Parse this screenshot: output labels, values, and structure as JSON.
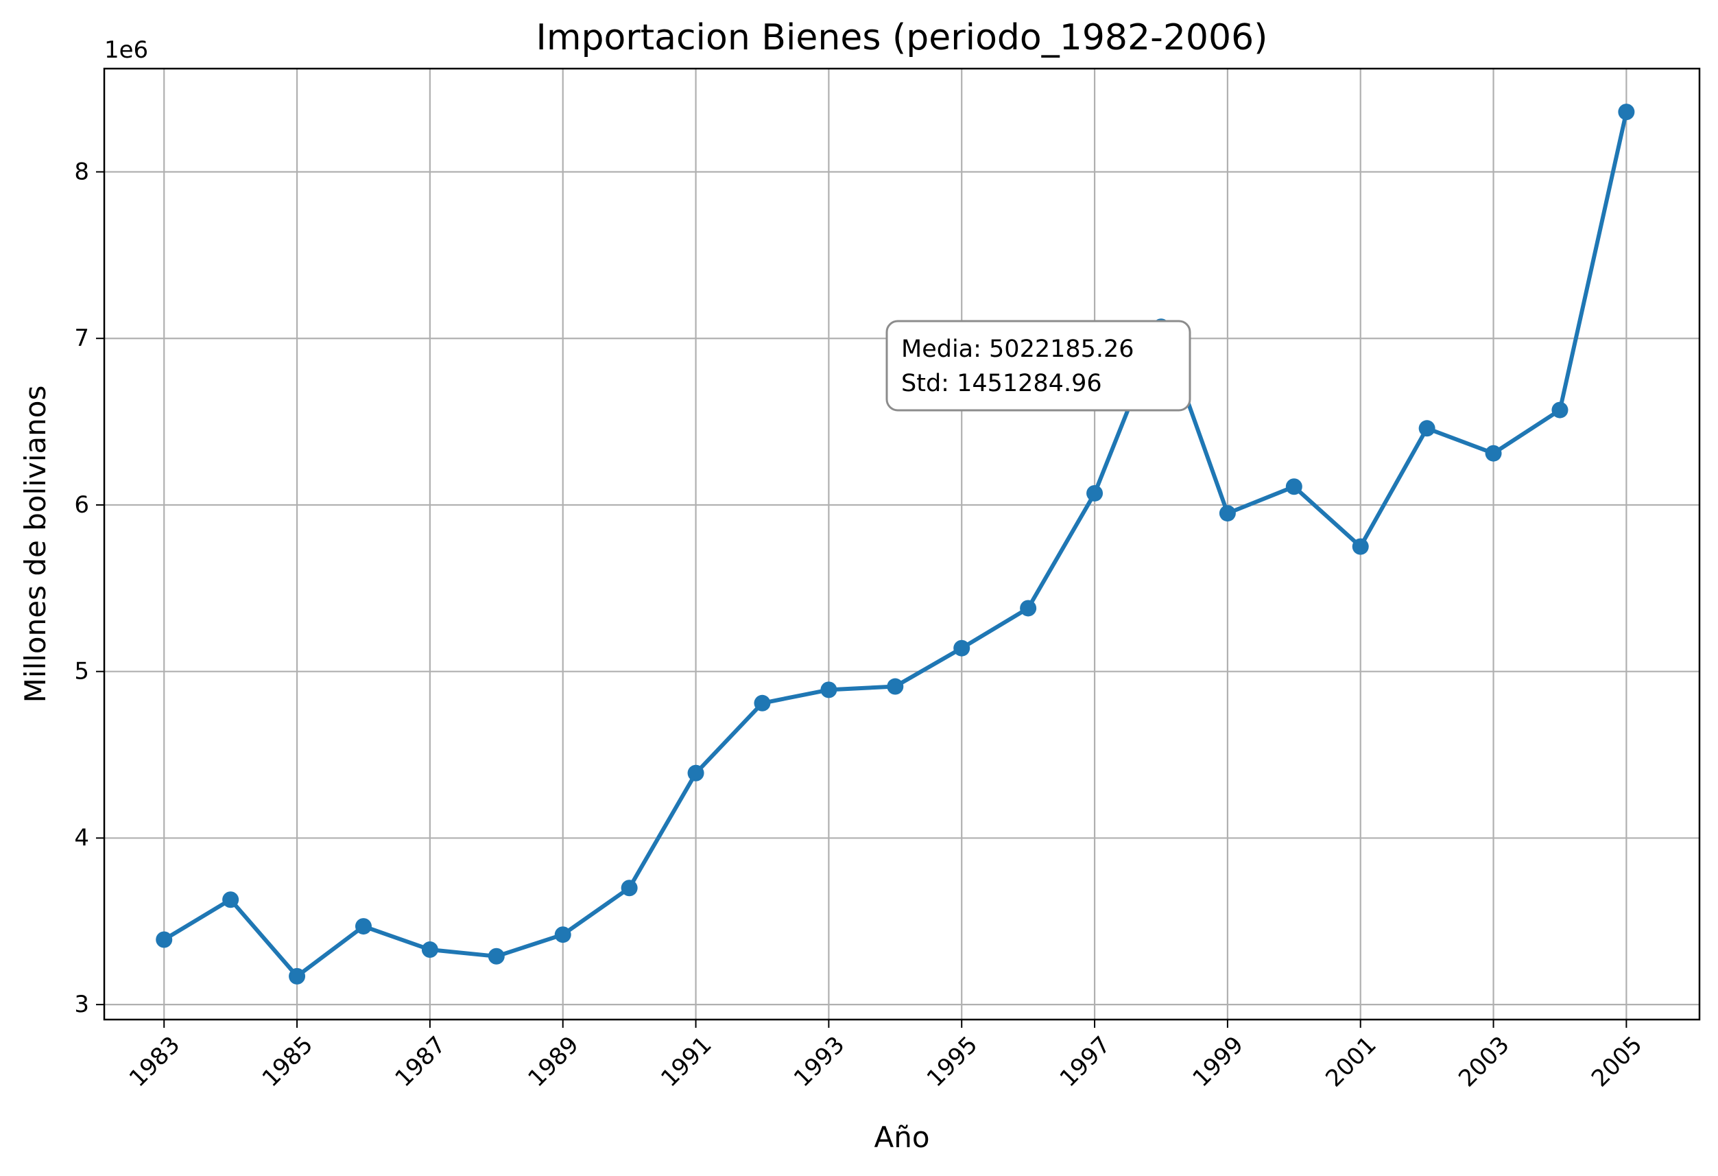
{
  "chart_data": {
    "type": "line",
    "title": "Importacion Bienes (periodo_1982-2006)",
    "xlabel": "Año",
    "ylabel": "Millones de bolivianos",
    "y_offset_label": "1e6",
    "y_multiplier": 1000000,
    "x": [
      1983,
      1984,
      1985,
      1986,
      1987,
      1988,
      1989,
      1990,
      1991,
      1992,
      1993,
      1994,
      1995,
      1996,
      1997,
      1998,
      1999,
      2000,
      2001,
      2002,
      2003,
      2004,
      2005
    ],
    "series": [
      {
        "values": [
          3390000,
          3630000,
          3170000,
          3470000,
          3330000,
          3290000,
          3420000,
          3700000,
          4390000,
          4810000,
          4890000,
          4910000,
          5140000,
          5380000,
          6070000,
          7070000,
          5950000,
          6110000,
          5750000,
          6460000,
          6310000,
          6570000,
          8360000
        ],
        "color": "#1f77b4"
      }
    ],
    "x_ticks": [
      1983,
      1985,
      1987,
      1989,
      1991,
      1993,
      1995,
      1997,
      1999,
      2001,
      2003,
      2005
    ],
    "x_tick_labels": [
      "1983",
      "1985",
      "1987",
      "1989",
      "1991",
      "1993",
      "1995",
      "1997",
      "1999",
      "2001",
      "2003",
      "2005"
    ],
    "y_ticks": [
      3,
      4,
      5,
      6,
      7,
      8
    ],
    "y_tick_labels": [
      "3",
      "4",
      "5",
      "6",
      "7",
      "8"
    ],
    "xlim": [
      1982.1,
      2006.1
    ],
    "ylim": [
      2.91,
      8.62
    ],
    "grid": true,
    "annotation": {
      "lines": [
        "Media: 5022185.26",
        "Std: 1451284.96"
      ]
    }
  }
}
